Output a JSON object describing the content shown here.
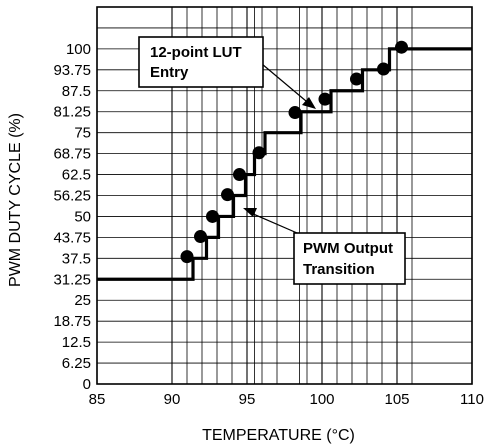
{
  "chart_data": {
    "type": "line",
    "xlabel": "TEMPERATURE (°C)",
    "ylabel": "PWM DUTY CYCLE (%)",
    "xlim": [
      85,
      110
    ],
    "ylim": [
      0,
      112.5
    ],
    "x_ticks": [
      "85",
      "90",
      "95",
      "100",
      "105",
      "110"
    ],
    "x_tick_values": [
      85,
      90,
      95,
      100,
      105,
      110
    ],
    "y_ticks": [
      "0",
      "6.25",
      "12.5",
      "18.75",
      "25",
      "31.25",
      "37.5",
      "43.75",
      "50",
      "56.25",
      "62.5",
      "68.75",
      "75",
      "81.25",
      "87.5",
      "93.75",
      "100"
    ],
    "y_tick_values": [
      0,
      6.25,
      12.5,
      18.75,
      25,
      31.25,
      37.5,
      43.75,
      50,
      56.25,
      62.5,
      68.75,
      75,
      81.25,
      87.5,
      93.75,
      100
    ],
    "x_minor_grid_values": [
      91,
      92,
      93,
      94,
      95.5,
      96,
      97,
      98.5,
      99,
      101,
      102,
      103,
      104,
      106
    ],
    "grid": true,
    "lut_points": {
      "x": [
        91,
        91.9,
        92.7,
        93.7,
        94.5,
        95.8,
        98.2,
        100.2,
        102.3,
        104.1,
        105.3
      ],
      "y": [
        38,
        44,
        50,
        56.5,
        62.5,
        69,
        81,
        85,
        91,
        94,
        100.5
      ]
    },
    "pwm_output": {
      "x": [
        85,
        91.4,
        91.4,
        92.3,
        92.3,
        93.1,
        93.1,
        94.1,
        94.1,
        94.9,
        94.9,
        95.5,
        95.5,
        96.2,
        96.2,
        98.6,
        98.6,
        100.6,
        100.6,
        102.7,
        102.7,
        104.5,
        104.5,
        105.6,
        105.6,
        110
      ],
      "y": [
        31.25,
        31.25,
        37.5,
        37.5,
        43.75,
        43.75,
        50,
        50,
        56.25,
        56.25,
        62.5,
        62.5,
        68.75,
        68.75,
        75,
        75,
        81.25,
        81.25,
        87.5,
        87.5,
        93.75,
        93.75,
        100,
        100,
        100,
        100
      ]
    },
    "callouts": [
      {
        "lines": [
          "12-point LUT",
          "Entry"
        ]
      },
      {
        "lines": [
          "PWM Output",
          "Transition"
        ]
      }
    ]
  }
}
